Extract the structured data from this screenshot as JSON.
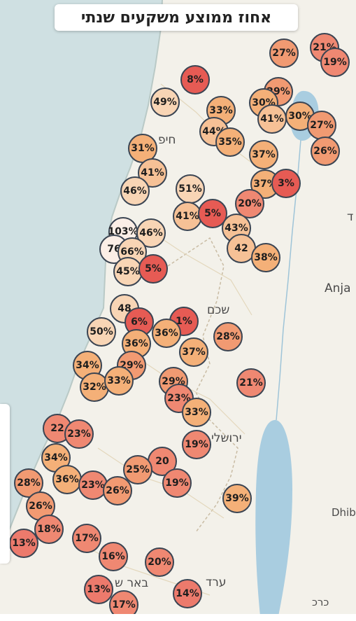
{
  "title": "אחוז ממוצע משקעים שנתי",
  "colors": {
    "sea": "#cfe0e2",
    "land": "#f3f1ea",
    "lake": "#a9cde0",
    "marker_border": "#3a4452"
  },
  "map_labels": [
    {
      "text": "שכם"
    },
    {
      "text": "ירושלי"
    },
    {
      "text": "Anja"
    },
    {
      "text": "Dhib"
    },
    {
      "text": "באר ש"
    },
    {
      "text": "ערד"
    },
    {
      "text": "כרכ"
    },
    {
      "text": "חיפ"
    },
    {
      "text": "ד"
    }
  ],
  "markers": [
    {
      "label": "27%",
      "pct": 27
    },
    {
      "label": "21%",
      "pct": 21
    },
    {
      "label": "19%",
      "pct": 19
    },
    {
      "label": "8%",
      "pct": 8
    },
    {
      "label": "49%",
      "pct": 49
    },
    {
      "label": "29%",
      "pct": 29
    },
    {
      "label": "33%",
      "pct": 33
    },
    {
      "label": "30%",
      "pct": 30
    },
    {
      "label": "41%",
      "pct": 41
    },
    {
      "label": "30%",
      "pct": 30
    },
    {
      "label": "27%",
      "pct": 27
    },
    {
      "label": "44%",
      "pct": 44
    },
    {
      "label": "35%",
      "pct": 35
    },
    {
      "label": "31%",
      "pct": 31
    },
    {
      "label": "37%",
      "pct": 37
    },
    {
      "label": "26%",
      "pct": 26
    },
    {
      "label": "41%",
      "pct": 41
    },
    {
      "label": "51%",
      "pct": 51
    },
    {
      "label": "46%",
      "pct": 46
    },
    {
      "label": "37%",
      "pct": 37
    },
    {
      "label": "3%",
      "pct": 3
    },
    {
      "label": "20%",
      "pct": 20
    },
    {
      "label": "103%",
      "pct": 103
    },
    {
      "label": "46%",
      "pct": 46
    },
    {
      "label": "41%",
      "pct": 41
    },
    {
      "label": "5%",
      "pct": 5
    },
    {
      "label": "43%",
      "pct": 43
    },
    {
      "label": "76",
      "pct": 76
    },
    {
      "label": "66%",
      "pct": 66
    },
    {
      "label": "42",
      "pct": 42
    },
    {
      "label": "38%",
      "pct": 38
    },
    {
      "label": "45%",
      "pct": 45
    },
    {
      "label": "5%",
      "pct": 5
    },
    {
      "label": "48",
      "pct": 48
    },
    {
      "label": "6%",
      "pct": 6
    },
    {
      "label": "1%",
      "pct": 1
    },
    {
      "label": "50%",
      "pct": 50
    },
    {
      "label": "36%",
      "pct": 36
    },
    {
      "label": "36%",
      "pct": 36
    },
    {
      "label": "28%",
      "pct": 28
    },
    {
      "label": "37%",
      "pct": 37
    },
    {
      "label": "34%",
      "pct": 34
    },
    {
      "label": "29%",
      "pct": 29
    },
    {
      "label": "32%",
      "pct": 32
    },
    {
      "label": "33%",
      "pct": 33
    },
    {
      "label": "29%",
      "pct": 29
    },
    {
      "label": "23%",
      "pct": 23
    },
    {
      "label": "33%",
      "pct": 33
    },
    {
      "label": "21%",
      "pct": 21
    },
    {
      "label": "22",
      "pct": 22
    },
    {
      "label": "23%",
      "pct": 23
    },
    {
      "label": "19%",
      "pct": 19
    },
    {
      "label": "34%",
      "pct": 34
    },
    {
      "label": "20",
      "pct": 20
    },
    {
      "label": "25%",
      "pct": 25
    },
    {
      "label": "28%",
      "pct": 28
    },
    {
      "label": "36%",
      "pct": 36
    },
    {
      "label": "23%",
      "pct": 23
    },
    {
      "label": "26%",
      "pct": 26
    },
    {
      "label": "19%",
      "pct": 19
    },
    {
      "label": "39%",
      "pct": 39
    },
    {
      "label": "26%",
      "pct": 26
    },
    {
      "label": "18%",
      "pct": 18
    },
    {
      "label": "13%",
      "pct": 13
    },
    {
      "label": "17%",
      "pct": 17
    },
    {
      "label": "16%",
      "pct": 16
    },
    {
      "label": "20%",
      "pct": 20
    },
    {
      "label": "13%",
      "pct": 13
    },
    {
      "label": "14%",
      "pct": 14
    },
    {
      "label": "17%",
      "pct": 17
    }
  ]
}
